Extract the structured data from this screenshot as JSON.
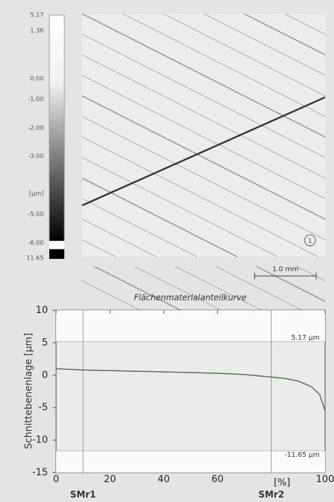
{
  "surface_image": {
    "colorbar_labels": [
      "5.17",
      "1.36",
      "0.00",
      "-1.00",
      "-2.00",
      "-3.00",
      "[µm]",
      "-5.00",
      "-6.00",
      "11.65"
    ],
    "marker": "1",
    "scale_bar": "1.0 mm"
  },
  "chart_data": {
    "type": "line",
    "title": "Flächenmaterialanteilkurve",
    "y_label": "Schnittebenenlage [µm]",
    "x_label": "[%]",
    "x": [
      0,
      10,
      20,
      30,
      40,
      50,
      60,
      70,
      80,
      85,
      90,
      95,
      98,
      100
    ],
    "series": [
      {
        "name": "Flächenmaterialanteilkurve",
        "color": "#556655",
        "values": [
          1.0,
          0.8,
          0.7,
          0.6,
          0.5,
          0.4,
          0.3,
          0.1,
          -0.3,
          -0.5,
          -0.9,
          -1.8,
          -3.0,
          -5.5
        ]
      }
    ],
    "xlim": [
      0,
      100
    ],
    "xticks": [
      0,
      20,
      40,
      60,
      100
    ],
    "ylim": [
      -15,
      10
    ],
    "yticks": [
      -15,
      -10,
      -5,
      0,
      5,
      10
    ],
    "reference_lines": [
      {
        "y": 5.17,
        "label": "5.17 µm"
      },
      {
        "y": -11.65,
        "label": "-11.65 µm"
      }
    ],
    "markers": [
      {
        "x": 10,
        "label": "SMr1"
      },
      {
        "x": 80,
        "label": "SMr2"
      }
    ]
  }
}
